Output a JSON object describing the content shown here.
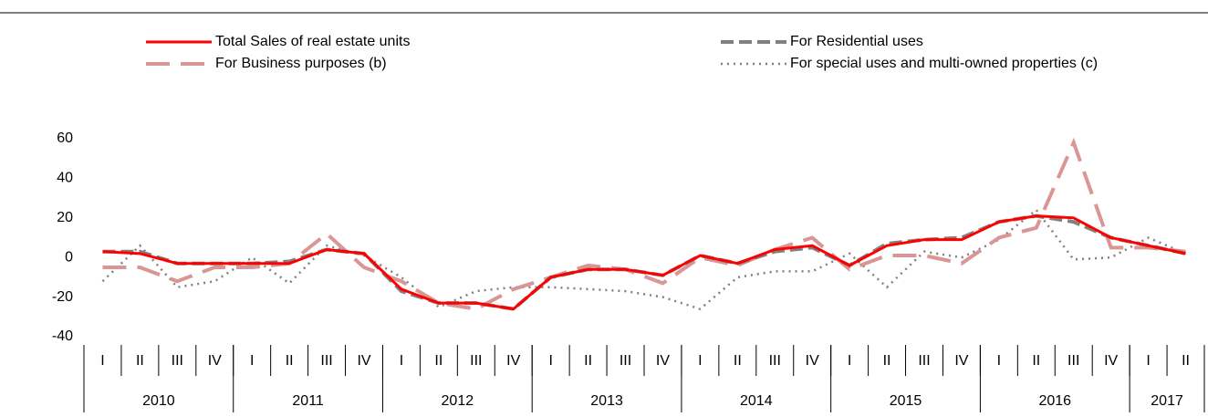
{
  "chart_data": {
    "type": "line",
    "categories": [
      "I",
      "II",
      "III",
      "IV",
      "I",
      "II",
      "III",
      "IV",
      "I",
      "II",
      "III",
      "IV",
      "I",
      "II",
      "III",
      "IV",
      "I",
      "II",
      "III",
      "IV",
      "I",
      "II",
      "III",
      "IV",
      "I",
      "II",
      "III",
      "IV",
      "I",
      "II"
    ],
    "year_groups": [
      {
        "label": "2010",
        "quarters": 4
      },
      {
        "label": "2011",
        "quarters": 4
      },
      {
        "label": "2012",
        "quarters": 4
      },
      {
        "label": "2013",
        "quarters": 4
      },
      {
        "label": "2014",
        "quarters": 4
      },
      {
        "label": "2015",
        "quarters": 4
      },
      {
        "label": "2016",
        "quarters": 4
      },
      {
        "label": "2017",
        "quarters": 2
      }
    ],
    "ylim": [
      -40,
      60
    ],
    "yticks": [
      -40,
      -20,
      0,
      20,
      40,
      60
    ],
    "series": [
      {
        "name": "Total Sales of real estate units",
        "color": "#ff0000",
        "dash": "solid",
        "values": [
          3,
          2,
          -3,
          -3,
          -3,
          -3,
          4,
          2,
          -16,
          -23,
          -23,
          -26,
          -10,
          -6,
          -6,
          -9,
          1,
          -3,
          4,
          6,
          -4,
          6,
          9,
          9,
          18,
          21,
          20,
          10,
          6,
          2
        ]
      },
      {
        "name": "For Residential uses",
        "color": "#808080",
        "dash": "dashed",
        "values": [
          3,
          3,
          -3,
          -3,
          -3,
          -2,
          4,
          2,
          -17,
          -23,
          -23,
          -26,
          -10,
          -6,
          -6,
          -9,
          1,
          -3,
          3,
          5,
          -4,
          7,
          9,
          10,
          18,
          21,
          18,
          10,
          6,
          2
        ]
      },
      {
        "name": "For Business purposes (b)",
        "color": "#d99694",
        "dash": "longdash",
        "values": [
          -5,
          -5,
          -12,
          -5,
          -5,
          -3,
          12,
          -5,
          -12,
          -23,
          -26,
          -16,
          -10,
          -4,
          -6,
          -13,
          0,
          -4,
          4,
          10,
          -6,
          1,
          1,
          -3,
          10,
          15,
          58,
          5,
          5,
          3
        ]
      },
      {
        "name": "For special uses and multi-owned properties  (c)",
        "color": "#808080",
        "dash": "dotted",
        "values": [
          -12,
          6,
          -15,
          -12,
          0,
          -13,
          6,
          1,
          -10,
          -25,
          -17,
          -15,
          -15,
          -16,
          -17,
          -20,
          -26,
          -10,
          -7,
          -7,
          2,
          -15,
          3,
          0,
          9,
          24,
          -1,
          0,
          10,
          2
        ]
      }
    ]
  }
}
